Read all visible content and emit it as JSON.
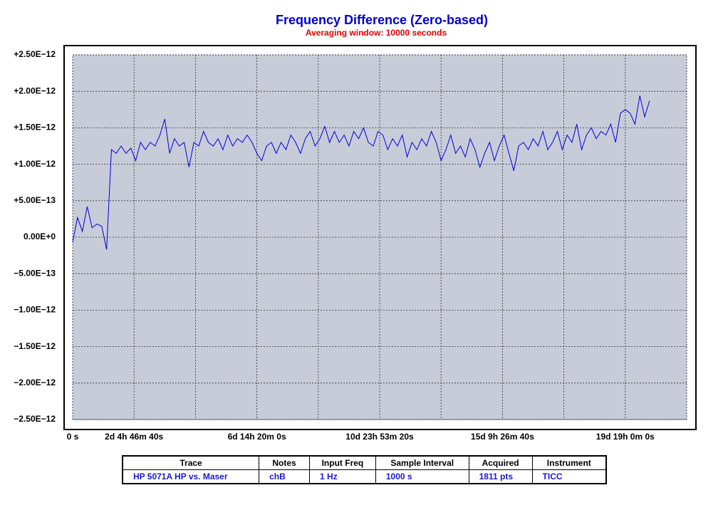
{
  "chart_data": {
    "type": "line",
    "title": "Frequency Difference (Zero-based)",
    "subtitle": "Averaging window: 10000 seconds",
    "title_color": "#0000cc",
    "subtitle_color": "#e00000",
    "plot_background": "#c8ccd8",
    "grid": true,
    "zero_label_color": "#1a1acc",
    "xlim": [
      0,
      1900000
    ],
    "xticks": [
      {
        "value": 0,
        "label": "0 s"
      },
      {
        "value": 190000,
        "label": "2d 4h 46m 40s"
      },
      {
        "value": 570000,
        "label": "6d 14h 20m 0s"
      },
      {
        "value": 950000,
        "label": "10d 23h 53m 20s"
      },
      {
        "value": 1330000,
        "label": "15d 9h 26m 40s"
      },
      {
        "value": 1710000,
        "label": "19d 19h 0m 0s"
      }
    ],
    "xgrid": [
      190000,
      380000,
      570000,
      760000,
      950000,
      1140000,
      1330000,
      1520000,
      1710000
    ],
    "ylim": [
      -2.5e-12,
      2.5e-12
    ],
    "yticks": [
      {
        "value": 2.5e-12,
        "label": "+2.50E−12"
      },
      {
        "value": 2e-12,
        "label": "+2.00E−12"
      },
      {
        "value": 1.5e-12,
        "label": "+1.50E−12"
      },
      {
        "value": 1e-12,
        "label": "+1.00E−12"
      },
      {
        "value": 5e-13,
        "label": "+5.00E−13"
      },
      {
        "value": 0,
        "label": "0.00E+0"
      },
      {
        "value": -5e-13,
        "label": "−5.00E−13"
      },
      {
        "value": -1e-12,
        "label": "−1.00E−12"
      },
      {
        "value": -1.5e-12,
        "label": "−1.50E−12"
      },
      {
        "value": -2e-12,
        "label": "−2.00E−12"
      },
      {
        "value": -2.5e-12,
        "label": "−2.50E−12"
      }
    ],
    "series": [
      {
        "name": "HP 5071A HP vs. Maser",
        "color": "#0000dd",
        "x": [
          0,
          15000,
          30000,
          45000,
          60000,
          75000,
          90000,
          105000,
          120000,
          135000,
          150000,
          165000,
          180000,
          195000,
          210000,
          225000,
          240000,
          255000,
          270000,
          285000,
          300000,
          315000,
          330000,
          345000,
          360000,
          375000,
          390000,
          405000,
          420000,
          435000,
          450000,
          465000,
          480000,
          495000,
          510000,
          525000,
          540000,
          555000,
          570000,
          585000,
          600000,
          615000,
          630000,
          645000,
          660000,
          675000,
          690000,
          705000,
          720000,
          735000,
          750000,
          765000,
          780000,
          795000,
          810000,
          825000,
          840000,
          855000,
          870000,
          885000,
          900000,
          915000,
          930000,
          945000,
          960000,
          975000,
          990000,
          1005000,
          1020000,
          1035000,
          1050000,
          1065000,
          1080000,
          1095000,
          1110000,
          1125000,
          1140000,
          1155000,
          1170000,
          1185000,
          1200000,
          1215000,
          1230000,
          1245000,
          1260000,
          1275000,
          1290000,
          1305000,
          1320000,
          1335000,
          1350000,
          1365000,
          1380000,
          1395000,
          1410000,
          1425000,
          1440000,
          1455000,
          1470000,
          1485000,
          1500000,
          1515000,
          1530000,
          1545000,
          1560000,
          1575000,
          1590000,
          1605000,
          1620000,
          1635000,
          1650000,
          1665000,
          1680000,
          1695000,
          1710000,
          1725000,
          1740000,
          1755000,
          1770000,
          1785000
        ],
        "values": [
          -7e-14,
          2.7e-13,
          8e-14,
          4.2e-13,
          1.3e-13,
          1.8e-13,
          1.5e-13,
          -1.7e-13,
          1.2e-12,
          1.15e-12,
          1.25e-12,
          1.15e-12,
          1.22e-12,
          1.05e-12,
          1.3e-12,
          1.2e-12,
          1.3e-12,
          1.25e-12,
          1.4e-12,
          1.62e-12,
          1.15e-12,
          1.35e-12,
          1.25e-12,
          1.3e-12,
          9.6e-13,
          1.3e-12,
          1.25e-12,
          1.45e-12,
          1.3e-12,
          1.25e-12,
          1.35e-12,
          1.2e-12,
          1.4e-12,
          1.25e-12,
          1.35e-12,
          1.3e-12,
          1.4e-12,
          1.3e-12,
          1.15e-12,
          1.05e-12,
          1.25e-12,
          1.3e-12,
          1.15e-12,
          1.3e-12,
          1.2e-12,
          1.4e-12,
          1.3e-12,
          1.15e-12,
          1.35e-12,
          1.45e-12,
          1.25e-12,
          1.35e-12,
          1.52e-12,
          1.3e-12,
          1.45e-12,
          1.3e-12,
          1.4e-12,
          1.25e-12,
          1.45e-12,
          1.35e-12,
          1.5e-12,
          1.3e-12,
          1.25e-12,
          1.45e-12,
          1.4e-12,
          1.2e-12,
          1.35e-12,
          1.25e-12,
          1.4e-12,
          1.1e-12,
          1.3e-12,
          1.2e-12,
          1.35e-12,
          1.25e-12,
          1.45e-12,
          1.3e-12,
          1.05e-12,
          1.2e-12,
          1.4e-12,
          1.15e-12,
          1.25e-12,
          1.1e-12,
          1.35e-12,
          1.2e-12,
          9.6e-13,
          1.15e-12,
          1.3e-12,
          1.05e-12,
          1.25e-12,
          1.4e-12,
          1.15e-12,
          9.1e-13,
          1.25e-12,
          1.3e-12,
          1.2e-12,
          1.35e-12,
          1.25e-12,
          1.45e-12,
          1.2e-12,
          1.3e-12,
          1.45e-12,
          1.2e-12,
          1.4e-12,
          1.3e-12,
          1.55e-12,
          1.2e-12,
          1.4e-12,
          1.5e-12,
          1.35e-12,
          1.45e-12,
          1.4e-12,
          1.55e-12,
          1.3e-12,
          1.7e-12,
          1.75e-12,
          1.7e-12,
          1.55e-12,
          1.94e-12,
          1.65e-12,
          1.87e-12
        ]
      }
    ]
  },
  "table": {
    "headers": [
      "Trace",
      "Notes",
      "Input Freq",
      "Sample Interval",
      "Acquired",
      "Instrument"
    ],
    "rows": [
      [
        "HP 5071A HP vs. Maser",
        "chB",
        "1 Hz",
        "1000 s",
        "1811 pts",
        "TICC"
      ]
    ]
  }
}
